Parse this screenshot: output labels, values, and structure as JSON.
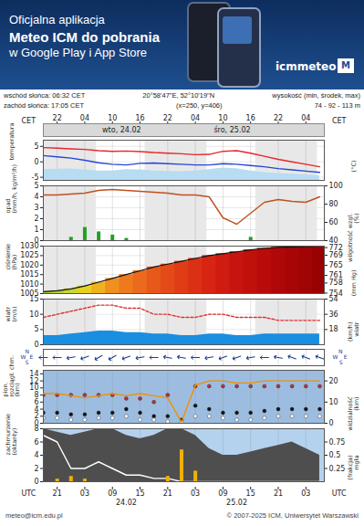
{
  "header": {
    "banner": [
      "Oficjalna aplikacja",
      "Meteo ICM do pobrania",
      "w Google Play i App Store"
    ],
    "logo": "icmmeteo",
    "badge": "M",
    "sunrise": "wschód słońca: 06:32 CET",
    "sunset": "zachód słońca: 17:05 CET",
    "coords": "20°58'47\"E, 52°10'19\"N",
    "grid_point": "(x=250, y=406)",
    "elevation_label": "wysokość (min, środek, max)",
    "elevation": "74 - 92 - 113 m"
  },
  "footer": {
    "email": "meteo@icm.edu.pl",
    "copyright": "© 2007-2025 ICM, Uniwersytet Warszawski"
  },
  "time": {
    "x": [
      -6,
      -3,
      0,
      3,
      6,
      9,
      12,
      15,
      18,
      21,
      24,
      27,
      30,
      33,
      36,
      39,
      42,
      45,
      48,
      51,
      54
    ],
    "xlim": [
      -6,
      55
    ],
    "top_label": "CET",
    "top_ticks": [
      {
        "value": -3,
        "label": "22"
      },
      {
        "value": 3,
        "label": "04"
      },
      {
        "value": 9,
        "label": "10"
      },
      {
        "value": 15,
        "label": "16"
      },
      {
        "value": 21,
        "label": "22"
      },
      {
        "value": 27,
        "label": "04"
      },
      {
        "value": 33,
        "label": "10"
      },
      {
        "value": 39,
        "label": "16"
      },
      {
        "value": 45,
        "label": "22"
      },
      {
        "value": 51,
        "label": "04"
      }
    ],
    "top_days": [
      {
        "value": 11,
        "label": "wto, 24.02"
      },
      {
        "value": 35,
        "label": "śro, 25.02"
      }
    ],
    "bottom_label": "UTC",
    "bottom_ticks": [
      {
        "value": -3,
        "label": "21"
      },
      {
        "value": 3,
        "label": "03"
      },
      {
        "value": 9,
        "label": "09"
      },
      {
        "value": 15,
        "label": "15"
      },
      {
        "value": 21,
        "label": "21"
      },
      {
        "value": 27,
        "label": "03"
      },
      {
        "value": 33,
        "label": "09"
      },
      {
        "value": 39,
        "label": "15"
      },
      {
        "value": 45,
        "label": "21"
      },
      {
        "value": 51,
        "label": "03"
      }
    ],
    "bottom_days": [
      {
        "value": 12,
        "label": "24.02"
      },
      {
        "value": 36,
        "label": "25.02"
      }
    ],
    "night": [
      [
        -6,
        5.5
      ],
      [
        16.1,
        29.5
      ],
      [
        40.1,
        53.5
      ]
    ]
  },
  "chart_data": [
    {
      "type": "line",
      "ylabel": [
        "temperatura"
      ],
      "y2label": [
        "(°C)"
      ],
      "ylim": [
        -6,
        7
      ],
      "yticks": [
        -5,
        0,
        5
      ],
      "grid": true,
      "series": [
        {
          "type": "area",
          "color": "#b8dcf2",
          "values": [
            -2.5,
            -2.4,
            -2.3,
            -2.6,
            -3.0,
            -3.0,
            -2.5,
            -2.6,
            -3.0,
            -3.1,
            -3.2,
            -3.0,
            -2.5,
            -2.0,
            -2.2,
            -3.0,
            -3.5,
            -3.8,
            -4.0,
            -4.2,
            -4.5
          ]
        },
        {
          "color": "#e8262a",
          "values": [
            4.6,
            4.4,
            4.2,
            4.0,
            3.6,
            3.4,
            3.5,
            3.3,
            3.0,
            2.8,
            2.6,
            2.3,
            2.4,
            3.4,
            3.6,
            2.8,
            1.8,
            0.8,
            0.0,
            -0.8,
            -1.6
          ]
        },
        {
          "color": "#2546d8",
          "values": [
            2.0,
            1.6,
            1.2,
            0.5,
            -0.3,
            -0.8,
            -1.0,
            -0.5,
            -0.4,
            -0.6,
            -0.8,
            -1.0,
            -1.0,
            -0.6,
            -0.8,
            -1.2,
            -1.6,
            -2.2,
            -2.6,
            -3.0,
            -3.4
          ]
        }
      ]
    },
    {
      "type": "bar",
      "ylabel": [
        "opad",
        "(mm/h, kg/m²/h)"
      ],
      "y2label": [
        "wilgotność wzgl.",
        "(%)"
      ],
      "ylim": [
        0,
        5
      ],
      "yticks": [
        0,
        1,
        2,
        3,
        4,
        5
      ],
      "y2lim": [
        40,
        100
      ],
      "y2ticks": [
        40,
        60,
        80,
        100
      ],
      "grid": true,
      "series": [
        {
          "color": "#22a022",
          "values": [
            0,
            0,
            0.3,
            1.2,
            0.8,
            0.5,
            0.2,
            0,
            0,
            0,
            0,
            0,
            0,
            0,
            0,
            0.3,
            0,
            0,
            0,
            0,
            0
          ]
        },
        {
          "type": "line",
          "axis": "y2",
          "color": "#c05020",
          "values": [
            90,
            90,
            91,
            92,
            95,
            96,
            95,
            94,
            93,
            92,
            90,
            90,
            88,
            65,
            58,
            70,
            82,
            85,
            83,
            82,
            88
          ]
        }
      ]
    },
    {
      "type": "bar",
      "ylabel": [
        "ciśnienie",
        "(hPa)"
      ],
      "y2label": [
        "(mm Hg)"
      ],
      "ylim": [
        1005,
        1030
      ],
      "yticks": [
        1005,
        1010,
        1015,
        1020,
        1025,
        1030
      ],
      "y2lim": [
        753.8,
        772.6
      ],
      "y2ticks": [
        754,
        758,
        761,
        765,
        769,
        772
      ],
      "grid": true,
      "series": [
        {
          "colors": [
            "#9ccc3c",
            "#b4d236",
            "#c8d830",
            "#e8d020",
            "#f0b020",
            "#f09020",
            "#ee7a1e",
            "#ec6a1c",
            "#e8581a",
            "#e44a18",
            "#e03c16",
            "#dc3014",
            "#d82412",
            "#d01c10",
            "#c8140e",
            "#c0100c",
            "#b80c0a",
            "#b00808",
            "#a80606",
            "#a00404",
            "#980202"
          ],
          "values": [
            1006,
            1006.5,
            1007.5,
            1009,
            1011,
            1013,
            1015,
            1017,
            1019,
            1020.5,
            1022,
            1023.5,
            1025,
            1026,
            1027,
            1028,
            1028.8,
            1029.3,
            1029.6,
            1029.8,
            1030
          ]
        }
      ]
    },
    {
      "type": "area",
      "ylabel": [
        "wiatr",
        "(m/s)"
      ],
      "y2label": [
        "(km/h)",
        "wiatr"
      ],
      "ylim": [
        0,
        15
      ],
      "yticks": [
        0,
        5,
        10,
        15
      ],
      "y2lim": [
        0,
        54
      ],
      "y2ticks": [
        18,
        36,
        54
      ],
      "grid": true,
      "series": [
        {
          "color": "#1a8ee0",
          "values": [
            3,
            3,
            3.5,
            4,
            4.5,
            4.5,
            4,
            4,
            3.5,
            3.5,
            3,
            3,
            3.5,
            3.5,
            3,
            3,
            3.5,
            3.5,
            3.5,
            3.5,
            3.5
          ]
        },
        {
          "type": "line",
          "line_style": "dashed",
          "color": "#e03030",
          "values": [
            9,
            10,
            11,
            12,
            13,
            13,
            12,
            12,
            10,
            10,
            9,
            9,
            10,
            10,
            9,
            9,
            9,
            8,
            8,
            8,
            8
          ]
        }
      ]
    },
    {
      "type": "vector",
      "tick_labels": false,
      "compass": [
        "N",
        "E",
        "S",
        "W"
      ],
      "color": "#1a3c8c",
      "values": [
        90,
        90,
        80,
        70,
        60,
        60,
        70,
        80,
        90,
        100,
        100,
        90,
        80,
        70,
        70,
        80,
        90,
        100,
        110,
        110,
        110
      ]
    },
    {
      "type": "scatter",
      "ylabel": [
        "pion.",
        "rozciągł. chm.",
        "(km)"
      ],
      "y2label": [
        "widzialność",
        "(km)"
      ],
      "ylim": [
        0,
        15
      ],
      "yticks": [
        0,
        2,
        4,
        6,
        8,
        10,
        12,
        14
      ],
      "y2lim": [
        0,
        25
      ],
      "y2ticks": [
        0,
        10,
        20
      ],
      "grid": true,
      "series": [
        {
          "marker": "circle",
          "color": "#c03030",
          "values": [
            8,
            8,
            8,
            8,
            8,
            8,
            7,
            7,
            6,
            8,
            null,
            10.5,
            10.5,
            10.5,
            10.5,
            10.5,
            10.5,
            10.5,
            10.5,
            10.5,
            10.5
          ]
        },
        {
          "marker": "circle",
          "color": "#111111",
          "values": [
            3,
            3,
            2.5,
            2.5,
            3,
            3,
            4,
            3,
            2,
            2,
            1,
            5,
            4,
            3,
            3,
            3,
            3.5,
            4,
            4,
            4,
            4
          ]
        },
        {
          "marker": "circle",
          "color": "#ffffff",
          "values": [
            1.5,
            1.5,
            1,
            1,
            1.5,
            1.5,
            2,
            1,
            1,
            0.5,
            0.3,
            2,
            2,
            1.5,
            1,
            1,
            1.5,
            2,
            2,
            2,
            2
          ]
        },
        {
          "type": "line",
          "axis": "y2",
          "color": "#f09000",
          "values": [
            14,
            14,
            13,
            12,
            13,
            14,
            13,
            14,
            13,
            12,
            0.5,
            18,
            20,
            20,
            19,
            19,
            20,
            20,
            20,
            20,
            20
          ]
        }
      ]
    },
    {
      "type": "area",
      "ylabel": [
        "zachmurzenie",
        "(oktanty)"
      ],
      "y2label": [
        "(frakcja)",
        "mgła"
      ],
      "ylim": [
        0,
        8
      ],
      "yticks": [
        0,
        2,
        4,
        6,
        8
      ],
      "y2lim": [
        0,
        1
      ],
      "y2ticks": [
        0.25,
        0.5,
        0.75
      ],
      "grid": true,
      "series": [
        {
          "color": "#4e4e4e",
          "values": [
            8,
            7.5,
            7,
            7.5,
            8,
            8,
            7,
            6.5,
            7,
            8,
            8,
            7,
            5,
            4,
            4,
            4.5,
            5,
            5.5,
            6,
            5,
            4
          ]
        },
        {
          "type": "line",
          "color": "#ffffff",
          "values": [
            7,
            6,
            2,
            2,
            3,
            2,
            1,
            1,
            0.5,
            0.5,
            0,
            0,
            0,
            0,
            0,
            0,
            0,
            0,
            0,
            0,
            0
          ]
        },
        {
          "type": "bar",
          "axis": "y2",
          "color": "#f0b000",
          "values": [
            0,
            0.05,
            0.1,
            0.05,
            0,
            0,
            0,
            0,
            0,
            0.1,
            0.6,
            0.2,
            0,
            0,
            0,
            0,
            0,
            0,
            0,
            0,
            0
          ]
        }
      ]
    }
  ]
}
